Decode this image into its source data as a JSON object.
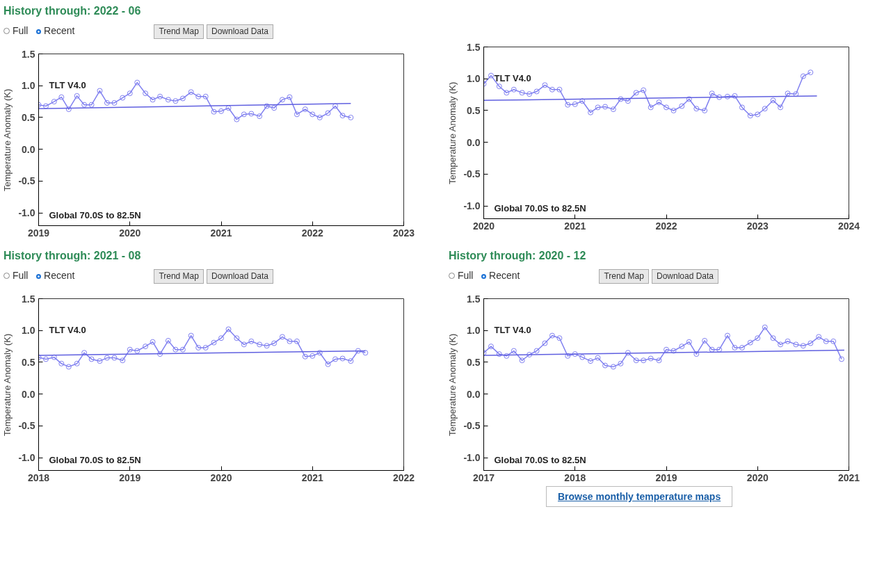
{
  "chart_data": [
    {
      "type": "line",
      "title": "History through: 2022 - 06",
      "ylabel": "Temperature Anomaly (K)",
      "annotations": [
        "TLT V4.0",
        "Global  70.0S to  82.5N",
        "Full",
        "Recent",
        "Trend Map",
        "Download Data"
      ],
      "xlim": [
        2019,
        2023
      ],
      "xticks": [
        2019,
        2020,
        2021,
        2022,
        2023
      ],
      "ylim": [
        -1.2,
        1.5
      ],
      "yticks": [
        {
          "value": -1,
          "label": "-1.0"
        },
        {
          "value": -0.5,
          "label": "-0.5"
        },
        {
          "value": 0,
          "label": "0.0"
        },
        {
          "value": 0.5,
          "label": "0.5"
        },
        {
          "value": 1,
          "label": "1.0"
        },
        {
          "value": 1.5,
          "label": "1.5"
        }
      ],
      "grid": false,
      "series": [
        {
          "color": "#8080f0",
          "marker": "circle",
          "x": [
            2019.0,
            2019.08,
            2019.17,
            2019.25,
            2019.33,
            2019.42,
            2019.5,
            2019.58,
            2019.67,
            2019.75,
            2019.83,
            2019.92,
            2020.0,
            2020.08,
            2020.17,
            2020.25,
            2020.33,
            2020.42,
            2020.5,
            2020.58,
            2020.67,
            2020.75,
            2020.83,
            2020.92,
            2021.0,
            2021.08,
            2021.17,
            2021.25,
            2021.33,
            2021.42,
            2021.5,
            2021.58,
            2021.67,
            2021.75,
            2021.83,
            2021.92,
            2022.0,
            2022.08,
            2022.17,
            2022.25,
            2022.33,
            2022.42
          ],
          "values": [
            0.7,
            0.68,
            0.75,
            0.82,
            0.63,
            0.84,
            0.7,
            0.7,
            0.92,
            0.73,
            0.73,
            0.81,
            0.88,
            1.05,
            0.88,
            0.78,
            0.83,
            0.78,
            0.76,
            0.8,
            0.9,
            0.83,
            0.83,
            0.59,
            0.6,
            0.65,
            0.47,
            0.55,
            0.56,
            0.52,
            0.68,
            0.65,
            0.78,
            0.82,
            0.55,
            0.63,
            0.55,
            0.5,
            0.57,
            0.68,
            0.53,
            0.5
          ]
        },
        {
          "color": "#6060e0",
          "marker": "none",
          "x": [
            2019.0,
            2022.42
          ],
          "values": [
            0.64,
            0.72
          ]
        }
      ]
    },
    {
      "type": "line",
      "ylabel": "Temperature Anomaly (K)",
      "annotations": [
        "TLT V4.0",
        "Global  70.0S to  82.5N"
      ],
      "xlim": [
        2020,
        2024
      ],
      "xticks": [
        2020,
        2021,
        2022,
        2023,
        2024
      ],
      "ylim": [
        -1.2,
        1.5
      ],
      "yticks": [
        {
          "value": -1,
          "label": "-1.0"
        },
        {
          "value": -0.5,
          "label": "-0.5"
        },
        {
          "value": 0,
          "label": "0.0"
        },
        {
          "value": 0.5,
          "label": "0.5"
        },
        {
          "value": 1,
          "label": "1.0"
        },
        {
          "value": 1.5,
          "label": "1.5"
        }
      ],
      "grid": false,
      "series": [
        {
          "color": "#8080f0",
          "marker": "circle",
          "x": [
            2020.0,
            2020.08,
            2020.17,
            2020.25,
            2020.33,
            2020.42,
            2020.5,
            2020.58,
            2020.67,
            2020.75,
            2020.83,
            2020.92,
            2021.0,
            2021.08,
            2021.17,
            2021.25,
            2021.33,
            2021.42,
            2021.5,
            2021.58,
            2021.67,
            2021.75,
            2021.83,
            2021.92,
            2022.0,
            2022.08,
            2022.17,
            2022.25,
            2022.33,
            2022.42,
            2022.5,
            2022.58,
            2022.67,
            2022.75,
            2022.83,
            2022.92,
            2023.0,
            2023.08,
            2023.17,
            2023.25,
            2023.33,
            2023.42,
            2023.5,
            2023.58
          ],
          "values": [
            0.92,
            1.05,
            0.88,
            0.78,
            0.83,
            0.78,
            0.76,
            0.8,
            0.9,
            0.83,
            0.83,
            0.59,
            0.6,
            0.65,
            0.47,
            0.55,
            0.56,
            0.52,
            0.68,
            0.65,
            0.78,
            0.82,
            0.55,
            0.63,
            0.55,
            0.5,
            0.57,
            0.68,
            0.53,
            0.5,
            0.77,
            0.71,
            0.72,
            0.73,
            0.55,
            0.42,
            0.44,
            0.53,
            0.66,
            0.55,
            0.77,
            0.76,
            1.04,
            1.1
          ]
        },
        {
          "color": "#6060e0",
          "marker": "none",
          "x": [
            2020.0,
            2023.65
          ],
          "values": [
            0.66,
            0.73
          ]
        }
      ]
    },
    {
      "type": "line",
      "title": "History through: 2021 - 08",
      "ylabel": "Temperature Anomaly (K)",
      "annotations": [
        "TLT V4.0",
        "Global  70.0S to  82.5N",
        "Full",
        "Recent",
        "Trend Map",
        "Download Data"
      ],
      "xlim": [
        2018,
        2022
      ],
      "xticks": [
        2018,
        2019,
        2020,
        2021,
        2022
      ],
      "ylim": [
        -1.2,
        1.5
      ],
      "yticks": [
        {
          "value": -1,
          "label": "-1.0"
        },
        {
          "value": -0.5,
          "label": "-0.5"
        },
        {
          "value": 0,
          "label": "0.0"
        },
        {
          "value": 0.5,
          "label": "0.5"
        },
        {
          "value": 1,
          "label": "1.0"
        },
        {
          "value": 1.5,
          "label": "1.5"
        }
      ],
      "grid": false,
      "series": [
        {
          "color": "#8080f0",
          "marker": "circle",
          "x": [
            2018.0,
            2018.08,
            2018.17,
            2018.25,
            2018.33,
            2018.42,
            2018.5,
            2018.58,
            2018.67,
            2018.75,
            2018.83,
            2018.92,
            2019.0,
            2019.08,
            2019.17,
            2019.25,
            2019.33,
            2019.42,
            2019.5,
            2019.58,
            2019.67,
            2019.75,
            2019.83,
            2019.92,
            2020.0,
            2020.08,
            2020.17,
            2020.25,
            2020.33,
            2020.42,
            2020.5,
            2020.58,
            2020.67,
            2020.75,
            2020.83,
            2020.92,
            2021.0,
            2021.08,
            2021.17,
            2021.25,
            2021.33,
            2021.42,
            2021.5,
            2021.58
          ],
          "values": [
            0.58,
            0.55,
            0.58,
            0.48,
            0.43,
            0.48,
            0.65,
            0.55,
            0.52,
            0.57,
            0.57,
            0.53,
            0.7,
            0.68,
            0.75,
            0.82,
            0.63,
            0.84,
            0.7,
            0.7,
            0.92,
            0.73,
            0.73,
            0.81,
            0.88,
            1.02,
            0.88,
            0.78,
            0.83,
            0.78,
            0.76,
            0.8,
            0.9,
            0.83,
            0.83,
            0.59,
            0.6,
            0.65,
            0.47,
            0.55,
            0.56,
            0.52,
            0.68,
            0.65
          ]
        },
        {
          "color": "#6060e0",
          "marker": "none",
          "x": [
            2018.0,
            2021.58
          ],
          "values": [
            0.61,
            0.68
          ]
        }
      ]
    },
    {
      "type": "line",
      "title": "History through: 2020 - 12",
      "ylabel": "Temperature Anomaly (K)",
      "annotations": [
        "TLT V4.0",
        "Global  70.0S to  82.5N",
        "Full",
        "Recent",
        "Trend Map",
        "Download Data",
        "Browse monthly temperature maps"
      ],
      "xlim": [
        2017,
        2021
      ],
      "xticks": [
        2017,
        2018,
        2019,
        2020,
        2021
      ],
      "ylim": [
        -1.2,
        1.5
      ],
      "yticks": [
        {
          "value": -1,
          "label": "-1.0"
        },
        {
          "value": -0.5,
          "label": "-0.5"
        },
        {
          "value": 0,
          "label": "0.0"
        },
        {
          "value": 0.5,
          "label": "0.5"
        },
        {
          "value": 1,
          "label": "1.0"
        },
        {
          "value": 1.5,
          "label": "1.5"
        }
      ],
      "grid": false,
      "series": [
        {
          "color": "#8080f0",
          "marker": "circle",
          "x": [
            2017.0,
            2017.08,
            2017.17,
            2017.25,
            2017.33,
            2017.42,
            2017.5,
            2017.58,
            2017.67,
            2017.75,
            2017.83,
            2017.92,
            2018.0,
            2018.08,
            2018.17,
            2018.25,
            2018.33,
            2018.42,
            2018.5,
            2018.58,
            2018.67,
            2018.75,
            2018.83,
            2018.92,
            2019.0,
            2019.08,
            2019.17,
            2019.25,
            2019.33,
            2019.42,
            2019.5,
            2019.58,
            2019.67,
            2019.75,
            2019.83,
            2019.92,
            2020.0,
            2020.08,
            2020.17,
            2020.25,
            2020.33,
            2020.42,
            2020.5,
            2020.58,
            2020.67,
            2020.75,
            2020.83,
            2020.92
          ],
          "values": [
            0.65,
            0.75,
            0.63,
            0.6,
            0.68,
            0.53,
            0.62,
            0.68,
            0.8,
            0.92,
            0.88,
            0.6,
            0.63,
            0.58,
            0.52,
            0.57,
            0.45,
            0.43,
            0.48,
            0.65,
            0.53,
            0.53,
            0.56,
            0.53,
            0.7,
            0.68,
            0.75,
            0.82,
            0.63,
            0.84,
            0.7,
            0.7,
            0.92,
            0.73,
            0.73,
            0.81,
            0.88,
            1.05,
            0.88,
            0.78,
            0.83,
            0.78,
            0.76,
            0.8,
            0.9,
            0.83,
            0.83,
            0.55
          ]
        },
        {
          "color": "#6060e0",
          "marker": "none",
          "x": [
            2017.0,
            2020.95
          ],
          "values": [
            0.61,
            0.69
          ]
        }
      ]
    }
  ]
}
